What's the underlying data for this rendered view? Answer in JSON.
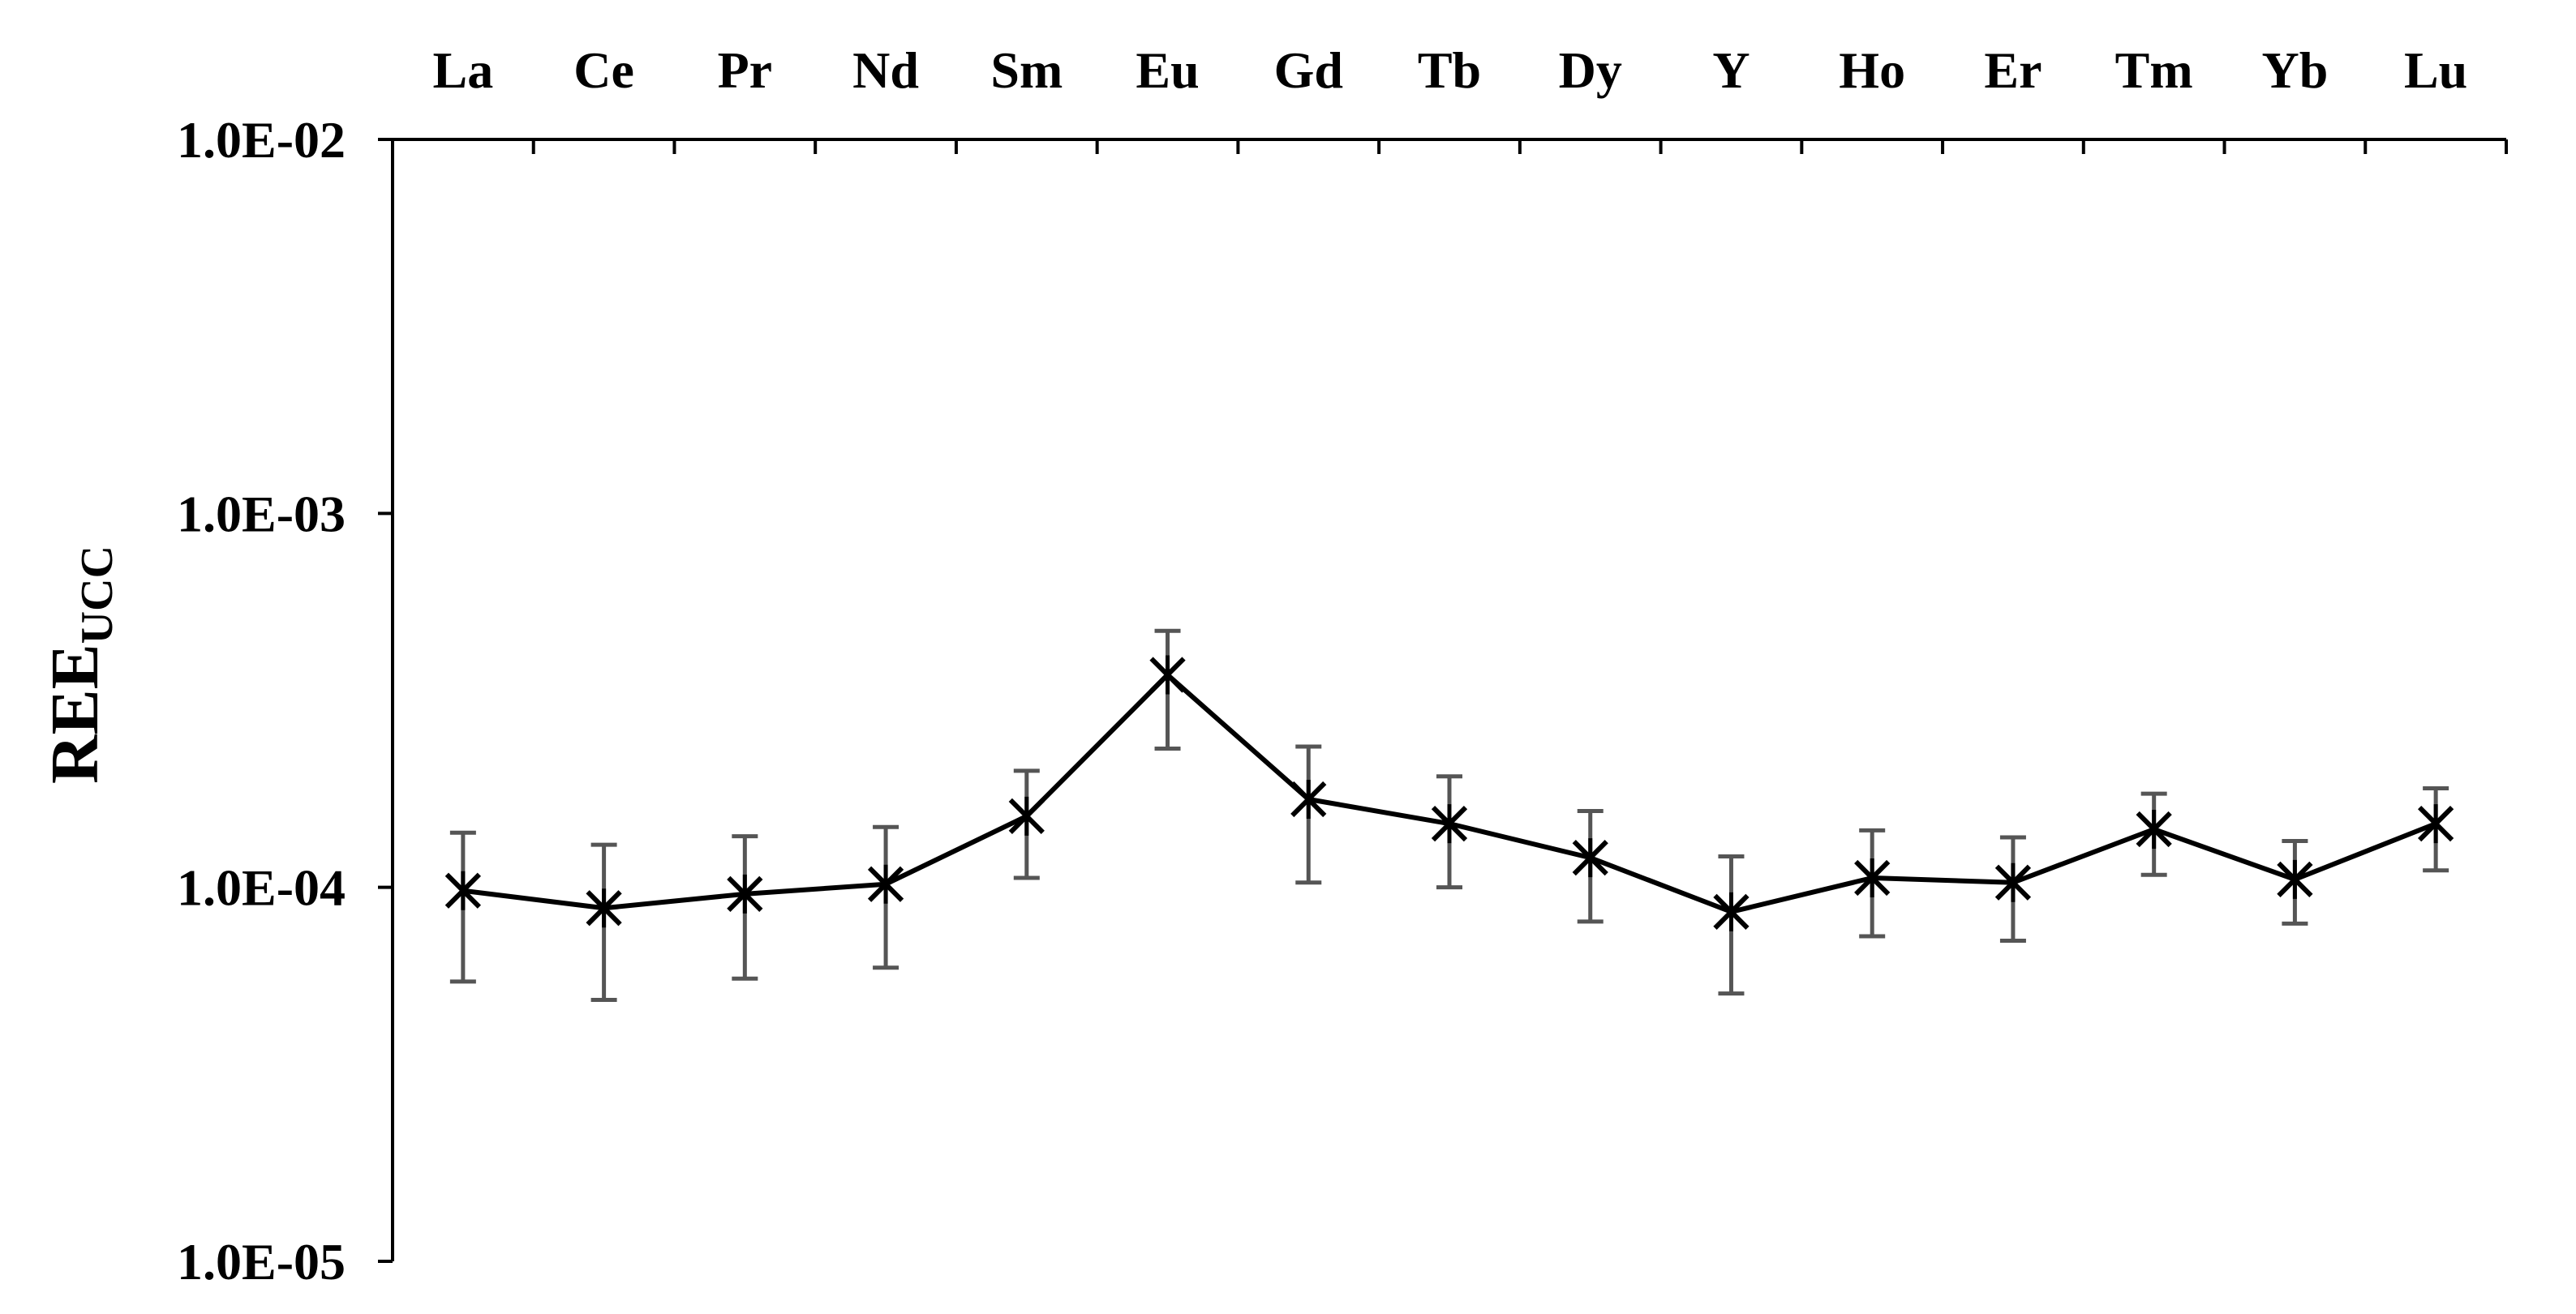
{
  "chart_data": {
    "type": "line",
    "title": "",
    "xlabel": "",
    "ylabel": {
      "main": "REE",
      "subscript": "UCC"
    },
    "y_scale": "log",
    "ylim": [
      1e-05,
      0.01
    ],
    "y_ticks": [
      {
        "value": 0.01,
        "label": "1.0E-02"
      },
      {
        "value": 0.001,
        "label": "1.0E-03"
      },
      {
        "value": 0.0001,
        "label": "1.0E-04"
      },
      {
        "value": 1e-05,
        "label": "1.0E-05"
      }
    ],
    "x_axis_position": "top",
    "grid": false,
    "legend": "none",
    "categories": [
      "La",
      "Ce",
      "Pr",
      "Nd",
      "Sm",
      "Eu",
      "Gd",
      "Tb",
      "Dy",
      "Y",
      "Ho",
      "Er",
      "Tm",
      "Yb",
      "Lu"
    ],
    "series": [
      {
        "values": [
          9.8e-05,
          8.8e-05,
          9.6e-05,
          0.000102,
          0.000155,
          0.00037,
          0.000172,
          0.000148,
          0.00012,
          8.6e-05,
          0.000106,
          0.000103,
          0.000143,
          0.000105,
          0.000148
        ],
        "err_low": [
          5.6e-05,
          5e-05,
          5.7e-05,
          6.1e-05,
          0.000106,
          0.000235,
          0.000103,
          0.0001,
          8.1e-05,
          5.2e-05,
          7.4e-05,
          7.2e-05,
          0.000108,
          8e-05,
          0.000111
        ],
        "err_high": [
          0.00014,
          0.00013,
          0.000137,
          0.000145,
          0.000205,
          0.000485,
          0.000238,
          0.000198,
          0.00016,
          0.000121,
          0.000142,
          0.000136,
          0.000178,
          0.000133,
          0.000184
        ],
        "marker": "x-star",
        "line_color": "#000000",
        "errorbar_color": "#555555"
      }
    ]
  }
}
